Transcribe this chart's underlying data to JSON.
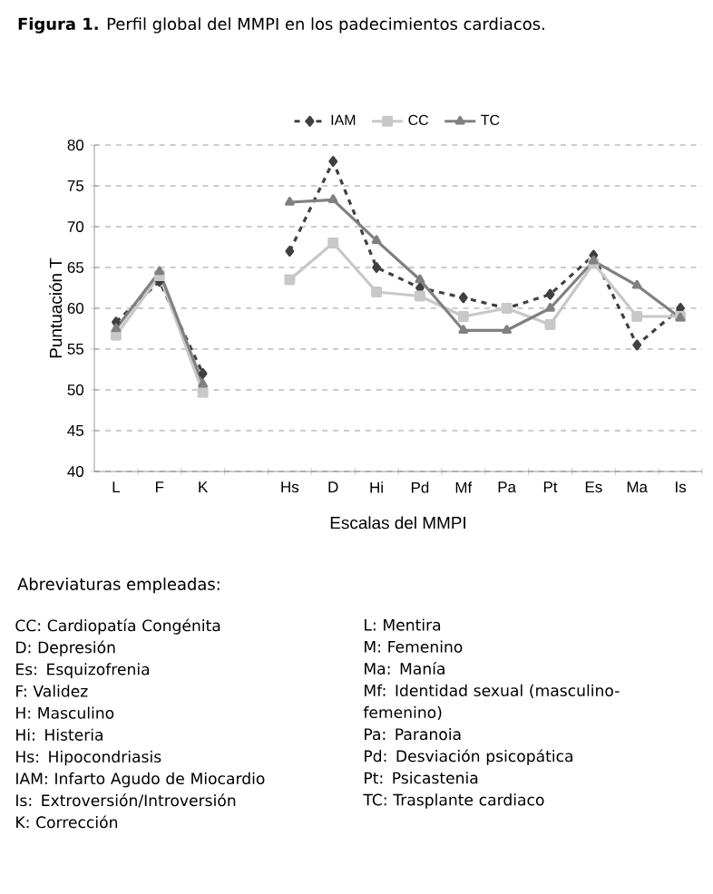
{
  "chart_data": {
    "type": "line",
    "title": "**Figura 1.** Perfil global del MMPI en los padecimientos cardiacos.",
    "xlabel": "Escalas del MMPI",
    "ylabel": "Puntuación T",
    "categories": [
      "L",
      "F",
      "K",
      null,
      "Hs",
      "D",
      "Hi",
      "Pd",
      "Mf",
      "Pa",
      "Pt",
      "Es",
      "Ma",
      "Is"
    ],
    "series": [
      {
        "name": "IAM",
        "color": "#404040",
        "marker": "diamond",
        "line_style": "dashed",
        "values": [
          58.3,
          63.3,
          52,
          null,
          67,
          78,
          65,
          62.5,
          61.3,
          60,
          61.7,
          66.5,
          55.5,
          60
        ]
      },
      {
        "name": "CC",
        "color": "#c8c8c8",
        "marker": "square",
        "line_style": "solid",
        "values": [
          56.7,
          64,
          49.7,
          null,
          63.5,
          68,
          62,
          61.5,
          59,
          60,
          58,
          65.5,
          59,
          59
        ]
      },
      {
        "name": "TC",
        "color": "#808080",
        "marker": "triangle",
        "line_style": "solid",
        "values": [
          57.5,
          64.5,
          50.7,
          null,
          73,
          73.3,
          68.3,
          63.5,
          57.3,
          57.3,
          60,
          65.8,
          62.8,
          58.8
        ]
      }
    ],
    "ylim": [
      40,
      80
    ],
    "yticks": [
      40,
      45,
      50,
      55,
      60,
      65,
      70,
      75,
      80
    ],
    "grid": "y",
    "legend": "top",
    "annotations": [
      "Abreviaturas empleadas:",
      "CC: Cardiopatía Congénita",
      "D: Depresión",
      "Es: Esquizofrenia",
      "F: Validez",
      "H: Masculino",
      "Hi: Histeria",
      "Hs: Hipocondriasis",
      "IAM: Infarto Agudo de Miocardio",
      "Is: Extroversión/Introversión",
      "K: Corrección",
      "L: Mentira",
      "M: Femenino",
      "Ma: Manía",
      "Mf: Identidad sexual (masculino-femenino)",
      "Pa: Paranoia",
      "Pd: Desviación psicopática",
      "Pt: Psicastenia",
      "TC: Trasplante cardiaco"
    ]
  }
}
